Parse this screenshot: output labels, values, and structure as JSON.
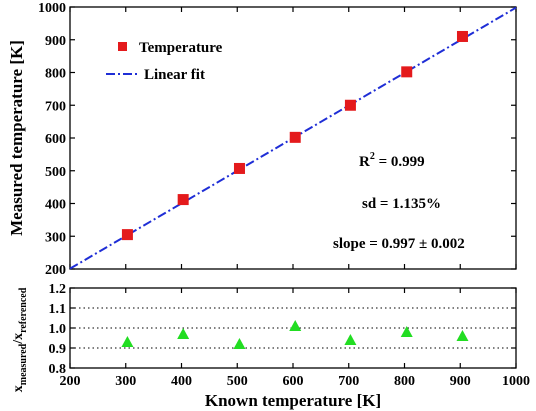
{
  "chart_data": [
    {
      "type": "scatter",
      "xlabel": "Known temperature [K]",
      "ylabel": "Measured temperature [K]",
      "xlim": [
        200,
        1000
      ],
      "ylim": [
        200,
        1000
      ],
      "x_ticks": [
        "200",
        "300",
        "400",
        "500",
        "600",
        "700",
        "800",
        "900",
        "1000"
      ],
      "y_ticks": [
        "200",
        "300",
        "400",
        "500",
        "600",
        "700",
        "800",
        "900",
        "1000"
      ],
      "legend_position": "top-left",
      "series": [
        {
          "name": "Temperature",
          "marker": "square",
          "color": "#e41a1c",
          "x": [
            303,
            403,
            504,
            604,
            703,
            804,
            904
          ],
          "y": [
            305,
            412,
            507,
            602,
            700,
            802,
            910
          ]
        },
        {
          "name": "Linear fit",
          "style": "dash-dot",
          "color": "#1f2ed6",
          "x": [
            200,
            1000
          ],
          "y": [
            201,
            998
          ]
        }
      ],
      "annotations": {
        "r2_base": "R",
        "r2_sup": "2",
        "r2_value": " = 0.999",
        "sd": "sd = 1.135%",
        "slope": "slope = 0.997 ±  0.002"
      }
    },
    {
      "type": "scatter",
      "xlabel": "Known temperature [K]",
      "ylabel_base1": "x",
      "ylabel_sub1": "measured",
      "ylabel_sep": "/x",
      "ylabel_sub2": "referenced",
      "xlim": [
        200,
        1000
      ],
      "ylim": [
        0.8,
        1.2
      ],
      "x_ticks": [
        "200",
        "300",
        "400",
        "500",
        "600",
        "700",
        "800",
        "900",
        "1000"
      ],
      "y_ticks": [
        "0.8",
        "0.9",
        "1.0",
        "1.1",
        "1.2"
      ],
      "reference_lines": [
        0.9,
        1.0,
        1.1
      ],
      "series": [
        {
          "marker": "triangle",
          "color": "#22dd22",
          "x": [
            303,
            403,
            504,
            604,
            703,
            804,
            904
          ],
          "y": [
            0.93,
            0.97,
            0.92,
            1.01,
            0.94,
            0.98,
            0.96
          ]
        }
      ]
    }
  ]
}
